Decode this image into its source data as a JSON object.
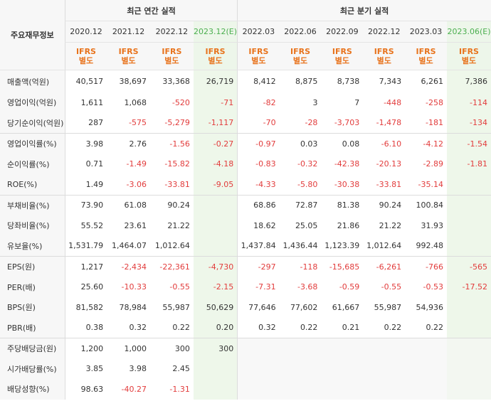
{
  "header": {
    "corner": "주요재무정보",
    "annual_group": "최근 연간 실적",
    "quarter_group": "최근 분기 실적",
    "periods": [
      "2020.12",
      "2021.12",
      "2022.12",
      "2023.12(E)",
      "2022.03",
      "2022.06",
      "2022.09",
      "2022.12",
      "2023.03",
      "2023.06(E)"
    ],
    "basis_line1": "IFRS",
    "basis_line2": "별도"
  },
  "rows": [
    {
      "label": "매출액(억원)",
      "values": [
        "40,517",
        "38,697",
        "33,368",
        "26,719",
        "8,412",
        "8,875",
        "8,738",
        "7,343",
        "6,261",
        "7,386"
      ]
    },
    {
      "label": "영업이익(억원)",
      "values": [
        "1,611",
        "1,068",
        "-520",
        "-71",
        "-82",
        "3",
        "7",
        "-448",
        "-258",
        "-114"
      ]
    },
    {
      "label": "당기순이익(억원)",
      "values": [
        "287",
        "-575",
        "-5,279",
        "-1,117",
        "-70",
        "-28",
        "-3,703",
        "-1,478",
        "-181",
        "-134"
      ]
    },
    {
      "label": "영업이익률(%)",
      "values": [
        "3.98",
        "2.76",
        "-1.56",
        "-0.27",
        "-0.97",
        "0.03",
        "0.08",
        "-6.10",
        "-4.12",
        "-1.54"
      ]
    },
    {
      "label": "순이익률(%)",
      "values": [
        "0.71",
        "-1.49",
        "-15.82",
        "-4.18",
        "-0.83",
        "-0.32",
        "-42.38",
        "-20.13",
        "-2.89",
        "-1.81"
      ]
    },
    {
      "label": "ROE(%)",
      "values": [
        "1.49",
        "-3.06",
        "-33.81",
        "-9.05",
        "-4.33",
        "-5.80",
        "-30.38",
        "-33.81",
        "-35.14",
        ""
      ]
    },
    {
      "label": "부채비율(%)",
      "values": [
        "73.90",
        "61.08",
        "90.24",
        "",
        "68.86",
        "72.87",
        "81.38",
        "90.24",
        "100.84",
        ""
      ]
    },
    {
      "label": "당좌비율(%)",
      "values": [
        "55.52",
        "23.61",
        "21.22",
        "",
        "18.62",
        "25.05",
        "21.86",
        "21.22",
        "31.93",
        ""
      ]
    },
    {
      "label": "유보율(%)",
      "values": [
        "1,531.79",
        "1,464.07",
        "1,012.64",
        "",
        "1,437.84",
        "1,436.44",
        "1,123.39",
        "1,012.64",
        "992.48",
        ""
      ]
    },
    {
      "label": "EPS(원)",
      "values": [
        "1,217",
        "-2,434",
        "-22,361",
        "-4,730",
        "-297",
        "-118",
        "-15,685",
        "-6,261",
        "-766",
        "-565"
      ]
    },
    {
      "label": "PER(배)",
      "values": [
        "25.60",
        "-10.33",
        "-0.55",
        "-2.15",
        "-7.31",
        "-3.68",
        "-0.59",
        "-0.55",
        "-0.53",
        "-17.52"
      ]
    },
    {
      "label": "BPS(원)",
      "values": [
        "81,582",
        "78,984",
        "55,987",
        "50,629",
        "77,646",
        "77,602",
        "61,667",
        "55,987",
        "54,936",
        ""
      ]
    },
    {
      "label": "PBR(배)",
      "values": [
        "0.38",
        "0.32",
        "0.22",
        "0.20",
        "0.32",
        "0.22",
        "0.21",
        "0.22",
        "0.22",
        ""
      ]
    },
    {
      "label": "주당배당금(원)",
      "values": [
        "1,200",
        "1,000",
        "300",
        "300",
        "",
        "",
        "",
        "",
        "",
        ""
      ]
    },
    {
      "label": "시가배당률(%)",
      "values": [
        "3.85",
        "3.98",
        "2.45",
        "",
        "",
        "",
        "",
        "",
        "",
        ""
      ]
    },
    {
      "label": "배당성향(%)",
      "values": [
        "98.63",
        "-40.27",
        "-1.31",
        "",
        "",
        "",
        "",
        "",
        "",
        ""
      ]
    }
  ],
  "colors": {
    "negative": "#e23c3c",
    "basis": "#e8731c",
    "estimate_bg": "#eef7ea",
    "estimate_text": "#4caf50"
  }
}
